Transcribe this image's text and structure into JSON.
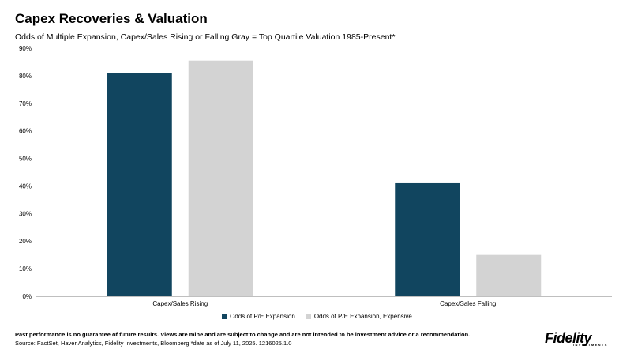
{
  "header": {
    "title": "Capex Recoveries & Valuation",
    "subtitle": "Odds of Multiple Expansion, Capex/Sales Rising or Falling Gray = Top Quartile Valuation 1985-Present*"
  },
  "chart_data": {
    "type": "bar",
    "categories": [
      "Capex/Sales Rising",
      "Capex/Sales Falling"
    ],
    "series": [
      {
        "name": "Odds of P/E Expansion",
        "values": [
          81,
          41
        ],
        "color": "#11455f"
      },
      {
        "name": "Odds of P/E Expansion, Expensive",
        "values": [
          85.5,
          15
        ],
        "color": "#d3d3d3"
      }
    ],
    "ylim": [
      0,
      90
    ],
    "yticks": [
      0,
      10,
      20,
      30,
      40,
      50,
      60,
      70,
      80,
      90
    ],
    "ytick_labels": [
      "0%",
      "10%",
      "20%",
      "30%",
      "40%",
      "50%",
      "60%",
      "70%",
      "80%",
      "90%"
    ],
    "grid": false,
    "legend_position": "bottom"
  },
  "footer": {
    "disclaimer": "Past performance is no guarantee of future results. Views are mine and are subject to change and are not intended to be investment advice or a recommendation.",
    "source": "Source: FactSet, Haver Analytics, Fidelity Investments, Bloomberg *date as of July 11, 2025. 1216025.1.0",
    "logo_text": "Fidelity",
    "logo_sub": "INVESTMENTS"
  }
}
